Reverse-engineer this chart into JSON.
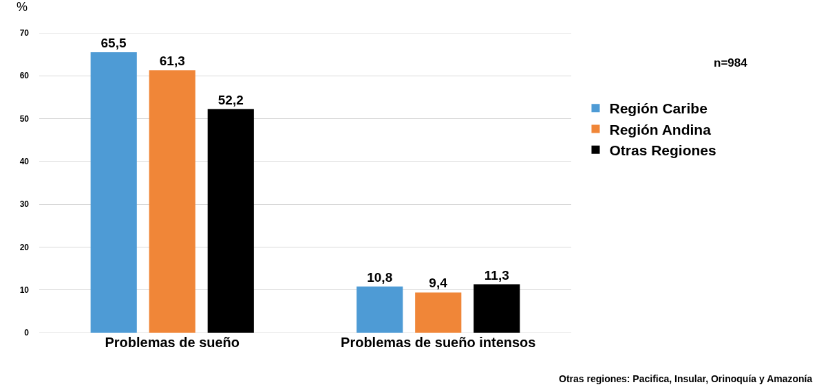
{
  "chart_data": {
    "type": "bar",
    "ylabel": "%",
    "categories": [
      "Problemas de sueño",
      "Problemas de sueño intensos"
    ],
    "series": [
      {
        "name": "Región Caribe",
        "color": "#4e9bd5",
        "values": [
          65.5,
          10.8
        ],
        "value_labels": [
          "65,5",
          "10,8"
        ]
      },
      {
        "name": "Región Andina",
        "color": "#f08638",
        "values": [
          61.3,
          9.4
        ],
        "value_labels": [
          "61,3",
          "9,4"
        ]
      },
      {
        "name": "Otras Regiones",
        "color": "#000000",
        "values": [
          52.2,
          11.3
        ],
        "value_labels": [
          "52,2",
          "11,3"
        ]
      }
    ],
    "ylim": [
      0,
      70
    ],
    "yticks": [
      0,
      10,
      20,
      30,
      40,
      50,
      60,
      70
    ],
    "grid": "y",
    "legend": "right",
    "annotations": [
      "n=984",
      "Otras regiones: Pacifica, Insular, Orinoquía y Amazonía"
    ]
  }
}
